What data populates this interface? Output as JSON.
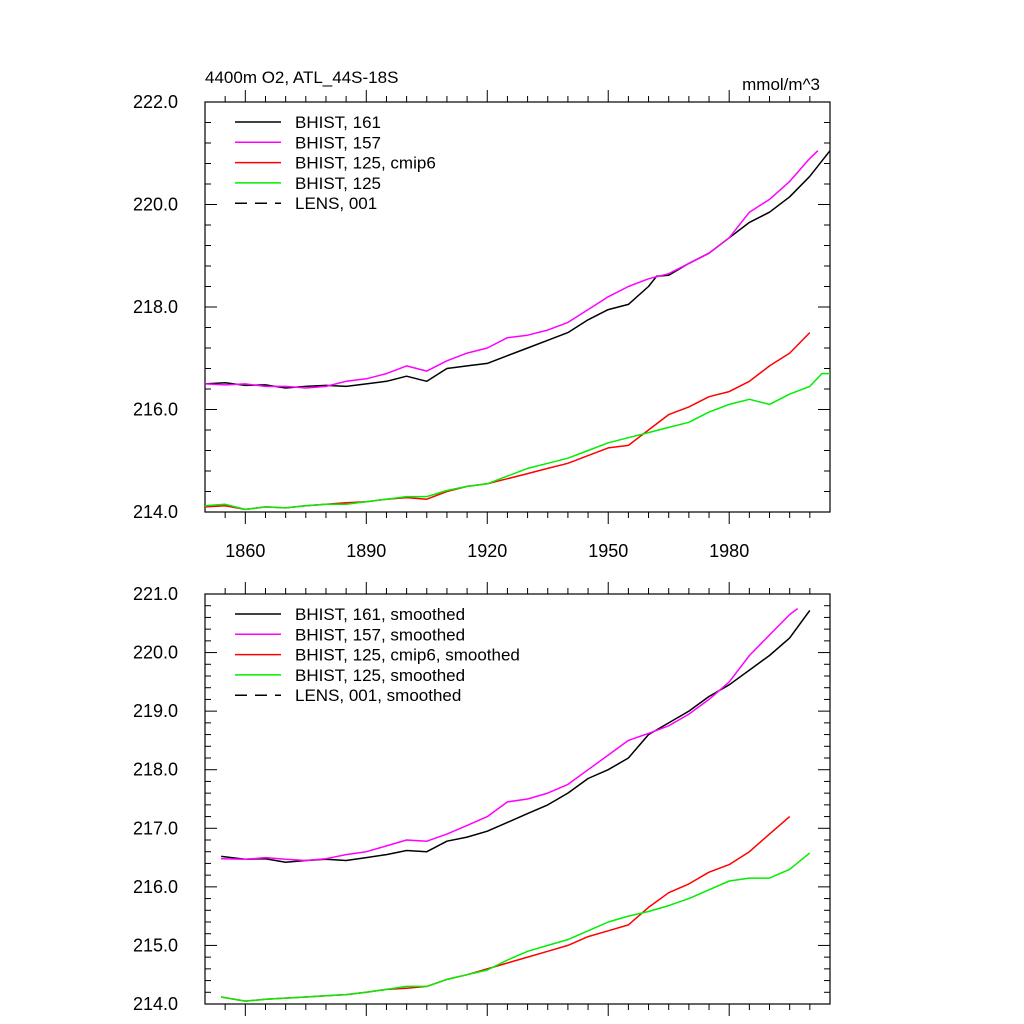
{
  "chart_data": [
    {
      "type": "line",
      "title": "4400m O2, ATL_44S-18S",
      "units": "mmol/m^3",
      "xlabel": "",
      "ylabel": "",
      "xlim": [
        1850,
        2005
      ],
      "ylim": [
        214.0,
        222.0
      ],
      "xticks": [
        1860,
        1890,
        1920,
        1950,
        1980
      ],
      "xtick_labels": [
        "1860",
        "1890",
        "1920",
        "1950",
        "1980"
      ],
      "show_xtick_labels": true,
      "yticks": [
        214.0,
        216.0,
        218.0,
        220.0,
        222.0
      ],
      "ytick_labels": [
        "214.0",
        "216.0",
        "218.0",
        "220.0",
        "222.0"
      ],
      "legend_position": "top-left",
      "series": [
        {
          "name": "BHIST, 161",
          "color": "#000000",
          "dash": "solid",
          "x": [
            1850,
            1855,
            1860,
            1865,
            1870,
            1875,
            1880,
            1885,
            1890,
            1895,
            1900,
            1905,
            1910,
            1915,
            1920,
            1925,
            1930,
            1935,
            1940,
            1945,
            1950,
            1955,
            1960,
            1962,
            1965,
            1970,
            1975,
            1980,
            1985,
            1990,
            1995,
            2000,
            2005
          ],
          "y": [
            216.5,
            216.52,
            216.47,
            216.48,
            216.42,
            216.45,
            216.47,
            216.45,
            216.5,
            216.55,
            216.65,
            216.55,
            216.8,
            216.85,
            216.9,
            217.05,
            217.2,
            217.35,
            217.5,
            217.75,
            217.95,
            218.05,
            218.4,
            218.6,
            218.62,
            218.85,
            219.05,
            219.35,
            219.65,
            219.85,
            220.15,
            220.55,
            221.05
          ]
        },
        {
          "name": "BHIST, 157",
          "color": "#ff00ff",
          "dash": "solid",
          "x": [
            1850,
            1855,
            1860,
            1865,
            1870,
            1875,
            1880,
            1885,
            1890,
            1895,
            1900,
            1905,
            1910,
            1915,
            1920,
            1925,
            1930,
            1935,
            1940,
            1945,
            1950,
            1955,
            1960,
            1965,
            1970,
            1975,
            1980,
            1985,
            1990,
            1995,
            2000,
            2002
          ],
          "y": [
            216.5,
            216.48,
            216.5,
            216.45,
            216.45,
            216.42,
            216.45,
            216.55,
            216.6,
            216.7,
            216.85,
            216.75,
            216.95,
            217.1,
            217.2,
            217.4,
            217.45,
            217.55,
            217.7,
            217.95,
            218.2,
            218.4,
            218.55,
            218.65,
            218.85,
            219.05,
            219.35,
            219.85,
            220.1,
            220.45,
            220.9,
            221.05
          ]
        },
        {
          "name": "BHIST, 125, cmip6",
          "color": "#ff0000",
          "dash": "solid",
          "x": [
            1850,
            1855,
            1860,
            1865,
            1870,
            1875,
            1880,
            1885,
            1890,
            1895,
            1900,
            1905,
            1910,
            1915,
            1920,
            1925,
            1930,
            1935,
            1940,
            1945,
            1950,
            1955,
            1960,
            1965,
            1970,
            1975,
            1980,
            1985,
            1990,
            1995,
            2000
          ],
          "y": [
            214.1,
            214.12,
            214.05,
            214.1,
            214.08,
            214.12,
            214.15,
            214.18,
            214.2,
            214.25,
            214.28,
            214.25,
            214.4,
            214.5,
            214.55,
            214.65,
            214.75,
            214.85,
            214.95,
            215.1,
            215.25,
            215.3,
            215.6,
            215.9,
            216.05,
            216.25,
            216.35,
            216.55,
            216.85,
            217.1,
            217.5
          ]
        },
        {
          "name": "BHIST, 125",
          "color": "#00ee00",
          "dash": "solid",
          "x": [
            1850,
            1855,
            1860,
            1865,
            1870,
            1875,
            1880,
            1885,
            1890,
            1895,
            1900,
            1905,
            1910,
            1915,
            1920,
            1925,
            1930,
            1935,
            1940,
            1945,
            1950,
            1955,
            1960,
            1965,
            1970,
            1975,
            1980,
            1985,
            1990,
            1995,
            2000,
            2003,
            2005
          ],
          "y": [
            214.12,
            214.15,
            214.05,
            214.1,
            214.08,
            214.12,
            214.15,
            214.15,
            214.2,
            214.25,
            214.3,
            214.3,
            214.42,
            214.5,
            214.55,
            214.7,
            214.85,
            214.95,
            215.05,
            215.2,
            215.35,
            215.45,
            215.55,
            215.65,
            215.75,
            215.95,
            216.1,
            216.2,
            216.1,
            216.3,
            216.45,
            216.7,
            216.7
          ]
        },
        {
          "name": "LENS, 001",
          "color": "#000000",
          "dash": "dashed",
          "x": [],
          "y": []
        }
      ]
    },
    {
      "type": "line",
      "title": "",
      "units": "",
      "xlabel": "",
      "ylabel": "",
      "xlim": [
        1850,
        2005
      ],
      "ylim": [
        214.0,
        221.0
      ],
      "xticks": [
        1860,
        1890,
        1920,
        1950,
        1980
      ],
      "xtick_labels": [],
      "show_xtick_labels": false,
      "yticks": [
        214.0,
        215.0,
        216.0,
        217.0,
        218.0,
        219.0,
        220.0,
        221.0
      ],
      "ytick_labels": [
        "214.0",
        "215.0",
        "216.0",
        "217.0",
        "218.0",
        "219.0",
        "220.0",
        "221.0"
      ],
      "legend_position": "top-left",
      "series": [
        {
          "name": "BHIST, 161, smoothed",
          "color": "#000000",
          "dash": "solid",
          "x": [
            1854,
            1860,
            1865,
            1870,
            1875,
            1880,
            1885,
            1890,
            1895,
            1900,
            1905,
            1910,
            1915,
            1920,
            1925,
            1930,
            1935,
            1940,
            1945,
            1950,
            1955,
            1960,
            1965,
            1970,
            1975,
            1980,
            1985,
            1990,
            1995,
            2000
          ],
          "y": [
            216.52,
            216.47,
            216.48,
            216.42,
            216.45,
            216.47,
            216.45,
            216.5,
            216.55,
            216.62,
            216.6,
            216.78,
            216.85,
            216.95,
            217.1,
            217.25,
            217.4,
            217.6,
            217.85,
            218.0,
            218.2,
            218.6,
            218.8,
            219.0,
            219.25,
            219.45,
            219.7,
            219.95,
            220.25,
            220.72
          ]
        },
        {
          "name": "BHIST, 157, smoothed",
          "color": "#ff00ff",
          "dash": "solid",
          "x": [
            1854,
            1860,
            1865,
            1870,
            1875,
            1880,
            1885,
            1890,
            1895,
            1900,
            1905,
            1910,
            1915,
            1920,
            1925,
            1930,
            1935,
            1940,
            1945,
            1950,
            1955,
            1960,
            1965,
            1970,
            1975,
            1980,
            1985,
            1990,
            1995,
            1997
          ],
          "y": [
            216.48,
            216.47,
            216.5,
            216.47,
            216.45,
            216.48,
            216.55,
            216.6,
            216.7,
            216.8,
            216.78,
            216.9,
            217.05,
            217.2,
            217.45,
            217.5,
            217.6,
            217.75,
            218.0,
            218.25,
            218.5,
            218.62,
            218.75,
            218.95,
            219.2,
            219.5,
            219.95,
            220.3,
            220.65,
            220.75
          ]
        },
        {
          "name": "BHIST, 125, cmip6, smoothed",
          "color": "#ff0000",
          "dash": "solid",
          "x": [
            1854,
            1860,
            1865,
            1870,
            1875,
            1880,
            1885,
            1890,
            1895,
            1900,
            1905,
            1910,
            1915,
            1920,
            1925,
            1930,
            1935,
            1940,
            1945,
            1950,
            1955,
            1960,
            1965,
            1970,
            1975,
            1980,
            1985,
            1990,
            1995
          ],
          "y": [
            214.12,
            214.05,
            214.08,
            214.1,
            214.12,
            214.14,
            214.16,
            214.2,
            214.25,
            214.27,
            214.3,
            214.42,
            214.5,
            214.6,
            214.7,
            214.8,
            214.9,
            215.0,
            215.15,
            215.25,
            215.35,
            215.65,
            215.9,
            216.05,
            216.25,
            216.38,
            216.6,
            216.9,
            217.2
          ]
        },
        {
          "name": "BHIST, 125, smoothed",
          "color": "#00ee00",
          "dash": "solid",
          "x": [
            1854,
            1860,
            1865,
            1870,
            1875,
            1880,
            1885,
            1890,
            1895,
            1900,
            1905,
            1910,
            1915,
            1920,
            1925,
            1930,
            1935,
            1940,
            1945,
            1950,
            1955,
            1960,
            1965,
            1970,
            1975,
            1980,
            1985,
            1990,
            1995,
            2000
          ],
          "y": [
            214.12,
            214.05,
            214.08,
            214.1,
            214.12,
            214.14,
            214.16,
            214.2,
            214.25,
            214.3,
            214.3,
            214.42,
            214.5,
            214.58,
            214.75,
            214.9,
            215.0,
            215.1,
            215.25,
            215.4,
            215.5,
            215.58,
            215.68,
            215.8,
            215.95,
            216.1,
            216.15,
            216.15,
            216.3,
            216.58
          ]
        },
        {
          "name": "LENS, 001, smoothed",
          "color": "#000000",
          "dash": "dashed",
          "x": [],
          "y": []
        }
      ]
    }
  ]
}
